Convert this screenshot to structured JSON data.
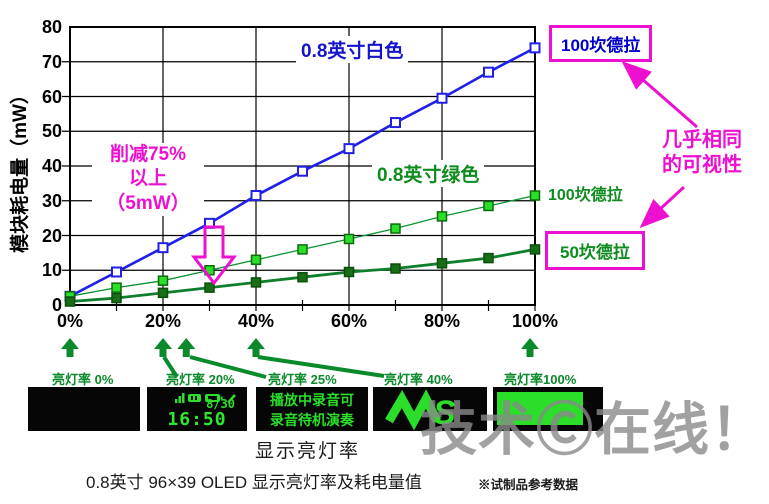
{
  "chart_data": {
    "type": "line",
    "title": "",
    "ylabel": "模块耗电量（mW）",
    "xlabel": "显示亮灯率",
    "ylim": [
      0,
      80
    ],
    "ytick_step": 10,
    "xticks_pct": [
      0,
      20,
      40,
      60,
      80,
      100
    ],
    "xtick_labels": [
      "0%",
      "20%",
      "40%",
      "60%",
      "80%",
      "100%"
    ],
    "grid": true,
    "x_pct": [
      0,
      10,
      20,
      30,
      40,
      50,
      60,
      70,
      80,
      90,
      100
    ],
    "series": [
      {
        "name": "0.8英寸白色（100坎德拉）",
        "color": "#1f1fe8",
        "width": 2.6,
        "marker_fill": "#ffffff",
        "marker_stroke": "#1f1fe8",
        "marker_stroke_width": 2,
        "values": [
          2.5,
          9.5,
          16.5,
          23.5,
          31.5,
          38.5,
          45,
          52.5,
          59.5,
          67,
          74
        ]
      },
      {
        "name": "0.8英寸绿色（100坎德拉）",
        "color": "#0c9432",
        "width": 1.3,
        "marker_fill": "#2ade2a",
        "marker_stroke": "#0b6b0b",
        "marker_stroke_width": 1.5,
        "values": [
          2.5,
          5,
          7,
          10,
          13,
          16,
          19,
          22,
          25.5,
          28.5,
          31.5
        ]
      },
      {
        "name": "0.8英寸绿色（50坎德拉）",
        "color": "#0f7e2a",
        "width": 2.8,
        "marker_fill": "#176e17",
        "marker_stroke": "#0b4f0b",
        "marker_stroke_width": 1.5,
        "values": [
          1,
          2,
          3.5,
          5,
          6.5,
          8,
          9.5,
          10.5,
          12,
          13.5,
          16
        ]
      }
    ]
  },
  "annotations": {
    "white_label": "0.8英寸白色",
    "green_label": "0.8英寸绿色",
    "reduction_line1": "削减75%",
    "reduction_line2": "以上",
    "reduction_line3": "（5mW）",
    "candela_100_blue": "100坎德拉",
    "candela_100_green": "100坎德拉",
    "candela_50_green": "50坎德拉",
    "visibility_line1": "几乎相同",
    "visibility_line2": "的可视性",
    "accent_magenta": "#ee10d0",
    "accent_green": "#0a8a2a"
  },
  "footer": {
    "indicators": [
      {
        "label": "亮灯率  0%",
        "rate": 0
      },
      {
        "label": "亮灯率 20%",
        "rate": 20
      },
      {
        "label": "亮灯率 25%",
        "rate": 25
      },
      {
        "label": "亮灯率 40%",
        "rate": 40
      },
      {
        "label": "亮灯率100%",
        "rate": 100
      }
    ],
    "screens": [
      {
        "type": "blank"
      },
      {
        "type": "clock",
        "date": "8/30",
        "time": "16:50"
      },
      {
        "type": "text",
        "line1": "播放中录音可",
        "line2": "录音待机演奏"
      },
      {
        "type": "logo"
      },
      {
        "type": "filled"
      }
    ],
    "axis_caption": "显示亮灯率",
    "caption": "0.8英寸 96×39 OLED 显示亮灯率及耗电量值",
    "caption_note": "※试制品参考数据",
    "watermark": "技术Ⓒ在线！"
  }
}
